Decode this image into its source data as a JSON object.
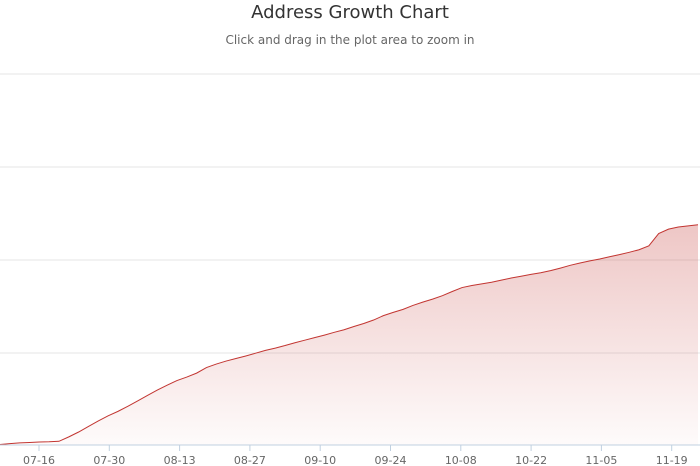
{
  "chart_data": {
    "type": "area",
    "title": "Address Growth Chart",
    "subtitle": "Click and drag in the plot area to zoom in",
    "xlabel": "",
    "ylabel": "",
    "x_tick_labels": [
      "07-16",
      "07-30",
      "08-13",
      "08-27",
      "09-10",
      "09-24",
      "10-08",
      "10-22",
      "11-05",
      "11-19"
    ],
    "grid": true,
    "legend": "none",
    "series": [
      {
        "color": "#c23531",
        "points": [
          [
            0,
            0.2
          ],
          [
            1,
            0.6
          ],
          [
            2,
            0.9
          ],
          [
            3,
            1.1
          ],
          [
            4,
            1.3
          ],
          [
            5,
            1.4
          ],
          [
            6,
            1.6
          ],
          [
            7,
            3.5
          ],
          [
            8,
            5.6
          ],
          [
            9,
            8.0
          ],
          [
            10,
            10.4
          ],
          [
            11,
            12.6
          ],
          [
            12,
            14.5
          ],
          [
            13,
            16.7
          ],
          [
            14,
            19.0
          ],
          [
            15,
            21.4
          ],
          [
            16,
            23.7
          ],
          [
            17,
            25.8
          ],
          [
            18,
            27.8
          ],
          [
            19,
            29.3
          ],
          [
            20,
            31.0
          ],
          [
            21,
            33.4
          ],
          [
            22,
            34.9
          ],
          [
            23,
            36.2
          ],
          [
            24,
            37.3
          ],
          [
            25,
            38.4
          ],
          [
            26,
            39.6
          ],
          [
            27,
            40.8
          ],
          [
            28,
            41.8
          ],
          [
            29,
            42.9
          ],
          [
            30,
            44.1
          ],
          [
            31,
            45.2
          ],
          [
            32,
            46.3
          ],
          [
            33,
            47.4
          ],
          [
            34,
            48.6
          ],
          [
            35,
            49.7
          ],
          [
            36,
            51.1
          ],
          [
            37,
            52.4
          ],
          [
            38,
            53.9
          ],
          [
            39,
            55.8
          ],
          [
            40,
            57.2
          ],
          [
            41,
            58.5
          ],
          [
            42,
            60.2
          ],
          [
            43,
            61.6
          ],
          [
            44,
            62.9
          ],
          [
            45,
            64.4
          ],
          [
            46,
            66.2
          ],
          [
            47,
            67.9
          ],
          [
            48,
            68.8
          ],
          [
            49,
            69.5
          ],
          [
            50,
            70.2
          ],
          [
            51,
            71.1
          ],
          [
            52,
            72.0
          ],
          [
            53,
            72.8
          ],
          [
            54,
            73.6
          ],
          [
            55,
            74.3
          ],
          [
            56,
            75.2
          ],
          [
            57,
            76.3
          ],
          [
            58,
            77.5
          ],
          [
            59,
            78.5
          ],
          [
            60,
            79.4
          ],
          [
            61,
            80.2
          ],
          [
            62,
            81.2
          ],
          [
            63,
            82.1
          ],
          [
            64,
            83.1
          ],
          [
            65,
            84.2
          ],
          [
            66,
            85.9
          ],
          [
            67,
            91.2
          ],
          [
            68,
            93.1
          ],
          [
            69,
            94.0
          ],
          [
            70,
            94.5
          ],
          [
            71,
            95.0
          ]
        ]
      }
    ]
  }
}
